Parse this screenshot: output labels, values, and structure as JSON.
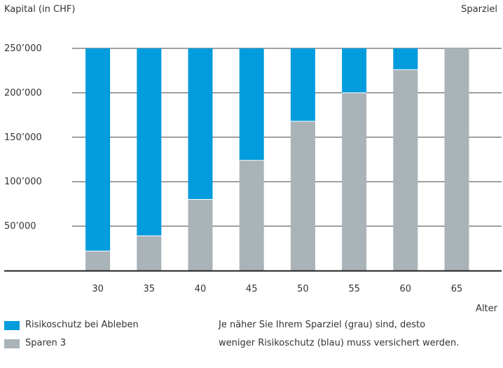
{
  "chart_data": {
    "type": "bar",
    "stacked": true,
    "ylabel": "Kapital (in CHF)",
    "top_right_label": "Sparziel",
    "xlabel": "Alter",
    "categories": [
      "30",
      "35",
      "40",
      "45",
      "50",
      "55",
      "60",
      "65"
    ],
    "series": [
      {
        "name": "Sparen 3",
        "color": "#a9b3b8",
        "values": [
          22000,
          39000,
          80000,
          124000,
          168000,
          200000,
          226000,
          250000
        ]
      },
      {
        "name": "Risikoschutz bei Ableben",
        "color": "#009cdd",
        "values": [
          228000,
          211000,
          170000,
          126000,
          82000,
          50000,
          24000,
          0
        ]
      }
    ],
    "yticks": [
      50000,
      100000,
      150000,
      200000,
      250000
    ],
    "ytick_labels": [
      "50’000",
      "100’000",
      "150’000",
      "200’000",
      "250’000"
    ],
    "ylim": [
      0,
      250000
    ],
    "grid": true
  },
  "legend": [
    {
      "label": "Risikoschutz bei Ableben",
      "color": "#009cdd"
    },
    {
      "label": "Sparen 3",
      "color": "#a9b3b8"
    }
  ],
  "note": {
    "line1": "Je näher Sie Ihrem Sparziel (grau) sind, desto",
    "line2": "weniger Risikoschutz (blau) muss versichert werden."
  }
}
